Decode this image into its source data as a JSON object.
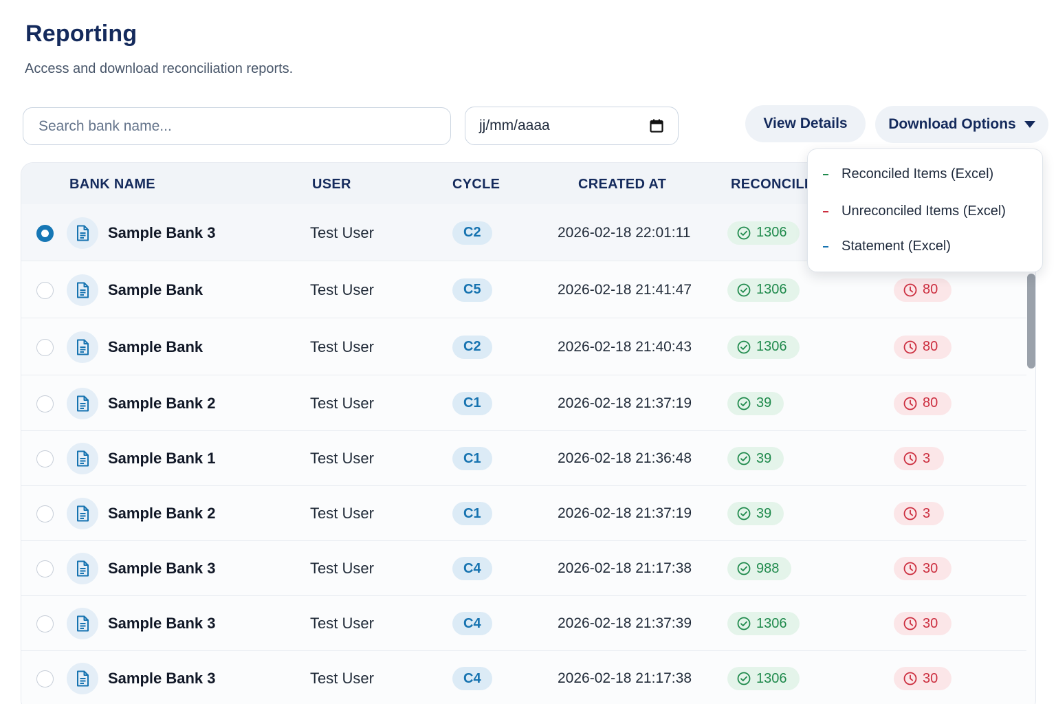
{
  "header": {
    "title": "Reporting",
    "subtitle": "Access and download reconciliation reports."
  },
  "toolbar": {
    "search_placeholder": "Search bank name...",
    "date_value": "jj/mm/aaaa",
    "view_details_label": "View Details",
    "download_options_label": "Download Options"
  },
  "dropdown": {
    "items": [
      {
        "label": "Reconciled Items (Excel)",
        "dash_color": "#1f8a4c"
      },
      {
        "label": "Unreconciled Items (Excel)",
        "dash_color": "#cc2e3f"
      },
      {
        "label": "Statement (Excel)",
        "dash_color": "#1673b0"
      }
    ]
  },
  "table": {
    "columns": [
      "BANK NAME",
      "USER",
      "CYCLE",
      "CREATED AT",
      "RECONCILE"
    ],
    "rows": [
      {
        "selected": true,
        "bank": "Sample Bank 3",
        "user": "Test User",
        "cycle": "C2",
        "created": "2026-02-18 22:01:11",
        "reconciled": "1306",
        "unreconciled": ""
      },
      {
        "selected": false,
        "bank": "Sample Bank",
        "user": "Test User",
        "cycle": "C5",
        "created": "2026-02-18 21:41:47",
        "reconciled": "1306",
        "unreconciled": "80"
      },
      {
        "selected": false,
        "bank": "Sample Bank",
        "user": "Test User",
        "cycle": "C2",
        "created": "2026-02-18 21:40:43",
        "reconciled": "1306",
        "unreconciled": "80"
      },
      {
        "selected": false,
        "bank": "Sample Bank 2",
        "user": "Test User",
        "cycle": "C1",
        "created": "2026-02-18 21:37:19",
        "reconciled": "39",
        "unreconciled": "80"
      },
      {
        "selected": false,
        "bank": "Sample Bank 1",
        "user": "Test User",
        "cycle": "C1",
        "created": "2026-02-18 21:36:48",
        "reconciled": "39",
        "unreconciled": "3"
      },
      {
        "selected": false,
        "bank": "Sample Bank 2",
        "user": "Test User",
        "cycle": "C1",
        "created": "2026-02-18 21:37:19",
        "reconciled": "39",
        "unreconciled": "3"
      },
      {
        "selected": false,
        "bank": "Sample Bank 3",
        "user": "Test User",
        "cycle": "C4",
        "created": "2026-02-18 21:17:38",
        "reconciled": "988",
        "unreconciled": "30"
      },
      {
        "selected": false,
        "bank": "Sample Bank 3",
        "user": "Test User",
        "cycle": "C4",
        "created": "2026-02-18 21:37:39",
        "reconciled": "1306",
        "unreconciled": "30"
      },
      {
        "selected": false,
        "bank": "Sample Bank 3",
        "user": "Test User",
        "cycle": "C4",
        "created": "2026-02-18 21:17:38",
        "reconciled": "1306",
        "unreconciled": "30"
      }
    ]
  },
  "icons": {
    "row_icon": "document-icon",
    "reconciled_icon": "check-circle-icon",
    "unreconciled_icon": "clock-circle-icon",
    "date_icon": "calendar-icon",
    "dropdown_icon": "caret-down-icon"
  },
  "colors": {
    "title": "#142a5c",
    "accent": "#1677b5",
    "success": "#1f8a4c",
    "danger": "#cc2e3f"
  }
}
